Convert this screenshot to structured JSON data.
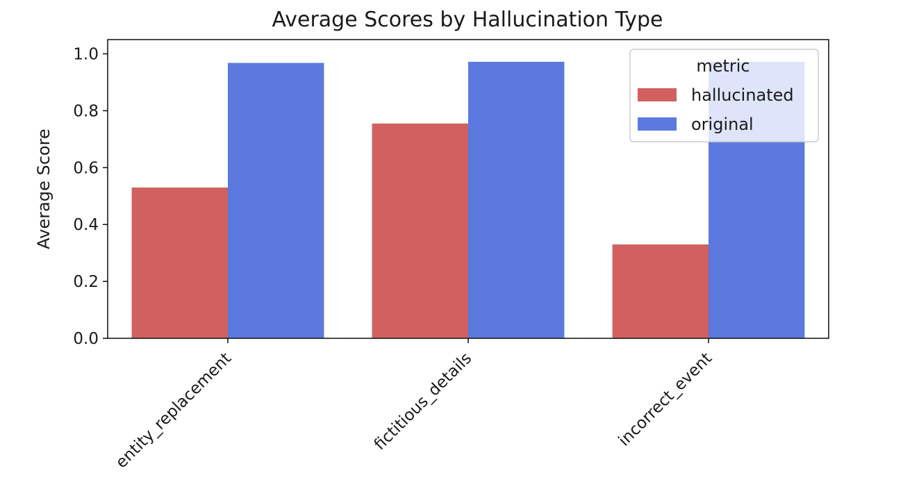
{
  "chart_data": {
    "type": "bar",
    "title": "Average Scores by Hallucination Type",
    "xlabel": "",
    "ylabel": "Average Score",
    "categories": [
      "entity_replacement",
      "fictitious_details",
      "incorrect_event"
    ],
    "series": [
      {
        "name": "hallucinated",
        "color": "#d1605e",
        "values": [
          0.53,
          0.755,
          0.33
        ]
      },
      {
        "name": "original",
        "color": "#5b79de",
        "values": [
          0.968,
          0.972,
          0.972
        ]
      }
    ],
    "ylim": [
      0,
      1.05
    ],
    "yticks": [
      "0.0",
      "0.2",
      "0.4",
      "0.6",
      "0.8",
      "1.0"
    ],
    "legend": {
      "title": "metric",
      "placement": "top-right"
    },
    "grid": false
  }
}
